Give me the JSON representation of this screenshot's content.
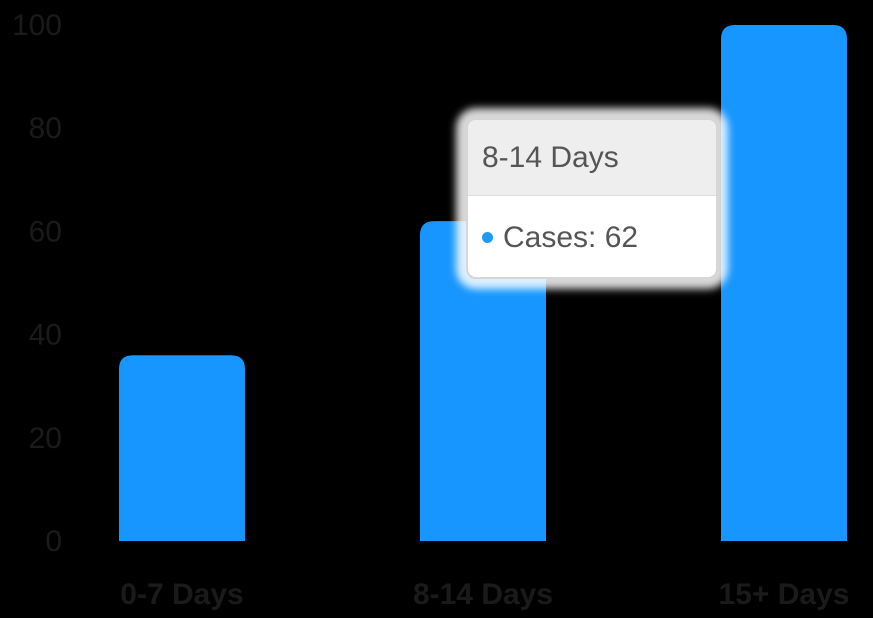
{
  "colors": {
    "background": "#000000",
    "bar": "#1796ff",
    "tick_text": "#1a1a1a",
    "tooltip_text": "#555555",
    "tooltip_header_bg": "#eeeeee",
    "tooltip_dot": "#1e9bf0"
  },
  "chart_data": {
    "type": "bar",
    "categories": [
      "0-7 Days",
      "8-14 Days",
      "15+ Days"
    ],
    "series": [
      {
        "values": [
          36,
          62,
          100
        ]
      }
    ],
    "yticks": [
      "0",
      "20",
      "40",
      "60",
      "80",
      "100"
    ],
    "ylim": [
      0,
      100
    ],
    "title": "",
    "xlabel": "",
    "ylabel": "",
    "grid": false,
    "legend": "none"
  },
  "tooltip": {
    "title": "8-14 Days",
    "series_label": "Cases",
    "separator": ": ",
    "value": "62"
  }
}
